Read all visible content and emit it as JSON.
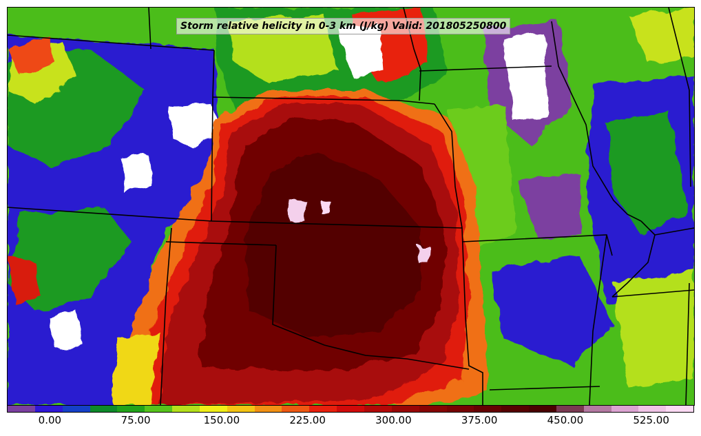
{
  "title": "Storm relative helicity in 0-3 km (J/kg) Valid: 201805250800",
  "colorbar": {
    "colors": [
      "#7b3fa0",
      "#2f17d6",
      "#1540c8",
      "#0e8a2a",
      "#22a31a",
      "#56c41c",
      "#b4e01c",
      "#f0ee18",
      "#f4c414",
      "#f29014",
      "#ee5812",
      "#e8200e",
      "#d00a0a",
      "#b20808",
      "#980606",
      "#860404",
      "#760303",
      "#650202",
      "#560101",
      "#4a0101",
      "#7a3a52",
      "#b47aa2",
      "#dca4d2",
      "#f0c4e6",
      "#fcdaf4"
    ],
    "ticks": [
      "0.00",
      "75.00",
      "150.00",
      "225.00",
      "300.00",
      "375.00",
      "450.00",
      "525.00"
    ],
    "tick_values": [
      0,
      75,
      150,
      225,
      300,
      375,
      450,
      525
    ],
    "range": [
      -37.5,
      562.5
    ]
  }
}
